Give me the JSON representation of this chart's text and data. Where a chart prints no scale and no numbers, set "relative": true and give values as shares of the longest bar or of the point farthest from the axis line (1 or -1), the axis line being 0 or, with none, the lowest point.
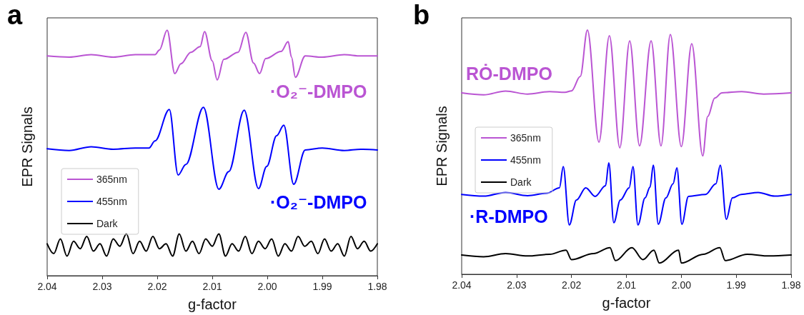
{
  "chart_data": [
    {
      "type": "line",
      "ylabel": "EPR Signals",
      "xlabel": "g-factor",
      "relative": true,
      "legend": "bottom left",
      "tick_labels": "x",
      "grid": false,
      "marker": "none",
      "line_style": "solid",
      "xlim": [
        2.04,
        1.98
      ],
      "xticks": [
        2.04,
        2.03,
        2.02,
        2.01,
        {
          "value": 2.0,
          "label": "2.00"
        },
        1.99,
        1.98
      ],
      "annotations": [
        "a",
        "·O₂⁻-DMPO",
        "·O₂⁻-DMPO"
      ],
      "series": [
        {
          "name": "365nm",
          "color": "#ba55d3",
          "x": [
            2.04,
            2.036,
            2.032,
            2.028,
            2.024,
            2.0204,
            2.0196,
            2.0182,
            2.0168,
            2.0157,
            2.0139,
            2.0122,
            2.0114,
            2.01,
            2.0091,
            2.0079,
            2.0053,
            2.0039,
            2.0025,
            2.0014,
            2.0003,
            1.9975,
            1.9962,
            1.9956,
            1.9949,
            1.9931,
            1.99,
            1.986,
            1.983,
            1.98
          ],
          "values": [
            0.895,
            0.89,
            0.9,
            0.89,
            0.9,
            0.9,
            0.919,
            1.0,
            0.823,
            0.863,
            0.91,
            0.933,
            0.994,
            0.875,
            0.797,
            0.881,
            0.91,
            0.991,
            0.866,
            0.823,
            0.884,
            0.913,
            0.953,
            0.89,
            0.808,
            0.895,
            0.89,
            0.9,
            0.895,
            0.895
          ]
        },
        {
          "name": "455nm",
          "color": "#0000ff",
          "x": [
            2.04,
            2.036,
            2.032,
            2.028,
            2.024,
            2.0215,
            2.0204,
            2.0178,
            2.0162,
            2.0148,
            2.0116,
            2.0088,
            2.007,
            2.0042,
            2.0016,
            2.0001,
            1.9983,
            1.997,
            1.9952,
            1.9931,
            1.99,
            1.986,
            1.983,
            1.98
          ],
          "values": [
            0.517,
            0.51,
            0.525,
            0.515,
            0.52,
            0.52,
            0.549,
            0.677,
            0.41,
            0.453,
            0.686,
            0.352,
            0.424,
            0.674,
            0.355,
            0.445,
            0.57,
            0.613,
            0.372,
            0.512,
            0.52,
            0.51,
            0.515,
            0.512
          ]
        },
        {
          "name": "Dark",
          "color": "#000000",
          "x": [
            2.04,
            2.0388,
            2.0376,
            2.0364,
            2.0352,
            2.034,
            2.0328,
            2.0316,
            2.0304,
            2.0292,
            2.028,
            2.0268,
            2.0256,
            2.0244,
            2.0232,
            2.022,
            2.0208,
            2.0196,
            2.0184,
            2.0172,
            2.016,
            2.0148,
            2.0136,
            2.0124,
            2.0112,
            2.01,
            2.0088,
            2.0076,
            2.0064,
            2.0052,
            2.004,
            2.0028,
            2.0016,
            2.0004,
            1.9992,
            1.998,
            1.9968,
            1.9956,
            1.9944,
            1.9932,
            1.992,
            1.9908,
            1.9896,
            1.9884,
            1.9872,
            1.986,
            1.9848,
            1.9836,
            1.9824,
            1.9812,
            1.98
          ],
          "values": [
            0.13,
            0.09,
            0.15,
            0.08,
            0.14,
            0.11,
            0.16,
            0.1,
            0.13,
            0.08,
            0.15,
            0.12,
            0.17,
            0.09,
            0.14,
            0.1,
            0.16,
            0.11,
            0.13,
            0.08,
            0.17,
            0.1,
            0.14,
            0.09,
            0.15,
            0.12,
            0.17,
            0.08,
            0.13,
            0.1,
            0.16,
            0.09,
            0.14,
            0.11,
            0.15,
            0.08,
            0.13,
            0.1,
            0.16,
            0.12,
            0.14,
            0.09,
            0.15,
            0.1,
            0.13,
            0.08,
            0.16,
            0.11,
            0.14,
            0.1,
            0.13
          ]
        }
      ]
    },
    {
      "type": "line",
      "ylabel": "EPR Signals",
      "xlabel": "g-factor",
      "relative": true,
      "legend": "left",
      "tick_labels": "x",
      "grid": false,
      "marker": "none",
      "line_style": "solid",
      "xlim": [
        2.04,
        1.98
      ],
      "xticks": [
        2.04,
        2.03,
        2.02,
        2.01,
        {
          "value": 2.0,
          "label": "2.00"
        },
        1.99,
        1.98
      ],
      "annotations": [
        "b",
        "RȮ-DMPO",
        "·R-DMPO"
      ],
      "series": [
        {
          "name": "365nm",
          "color": "#ba55d3",
          "x": [
            2.04,
            2.036,
            2.032,
            2.028,
            2.024,
            2.0212,
            2.02,
            2.0184,
            2.0171,
            2.015,
            2.0131,
            2.0112,
            2.0094,
            2.0076,
            2.0055,
            2.0037,
            2.002,
            2.0,
            1.9981,
            1.9961,
            1.9952,
            1.9939,
            1.9926,
            1.989,
            1.985,
            1.98
          ],
          "values": [
            0.743,
            0.735,
            0.75,
            0.738,
            0.748,
            0.745,
            0.751,
            0.81,
            1.0,
            0.541,
            0.977,
            0.518,
            0.956,
            0.526,
            0.956,
            0.526,
            0.982,
            0.523,
            0.944,
            0.485,
            0.646,
            0.722,
            0.743,
            0.748,
            0.738,
            0.743
          ]
        },
        {
          "name": "455nm",
          "color": "#0000ff",
          "x": [
            2.04,
            2.036,
            2.032,
            2.028,
            2.0245,
            2.0222,
            2.0215,
            2.0204,
            2.0191,
            2.0174,
            2.0157,
            2.0138,
            2.0132,
            2.0123,
            2.0111,
            2.0095,
            2.0088,
            2.0079,
            2.0066,
            2.0057,
            2.0051,
            2.0042,
            2.0028,
            2.0015,
            2.0008,
            1.9999,
            1.9987,
            1.9956,
            1.9937,
            1.9929,
            1.9918,
            1.9907,
            1.9891,
            1.986,
            1.983,
            1.98
          ],
          "values": [
            0.327,
            0.32,
            0.335,
            0.322,
            0.332,
            0.354,
            0.441,
            0.202,
            0.304,
            0.354,
            0.319,
            0.363,
            0.456,
            0.211,
            0.304,
            0.354,
            0.441,
            0.202,
            0.313,
            0.357,
            0.447,
            0.205,
            0.313,
            0.371,
            0.436,
            0.205,
            0.319,
            0.327,
            0.371,
            0.447,
            0.225,
            0.313,
            0.327,
            0.335,
            0.32,
            0.327
          ]
        },
        {
          "name": "Dark",
          "color": "#000000",
          "x": [
            2.04,
            2.036,
            2.032,
            2.028,
            2.024,
            2.021,
            2.02,
            2.016,
            2.013,
            2.012,
            2.009,
            2.007,
            2.005,
            2.004,
            2.0005,
            2.0,
            1.996,
            1.993,
            1.992,
            1.988,
            1.984,
            1.98
          ],
          "values": [
            0.079,
            0.072,
            0.085,
            0.075,
            0.082,
            0.099,
            0.06,
            0.085,
            0.109,
            0.056,
            0.109,
            0.06,
            0.099,
            0.046,
            0.099,
            0.046,
            0.082,
            0.109,
            0.056,
            0.082,
            0.075,
            0.079
          ]
        }
      ]
    }
  ]
}
